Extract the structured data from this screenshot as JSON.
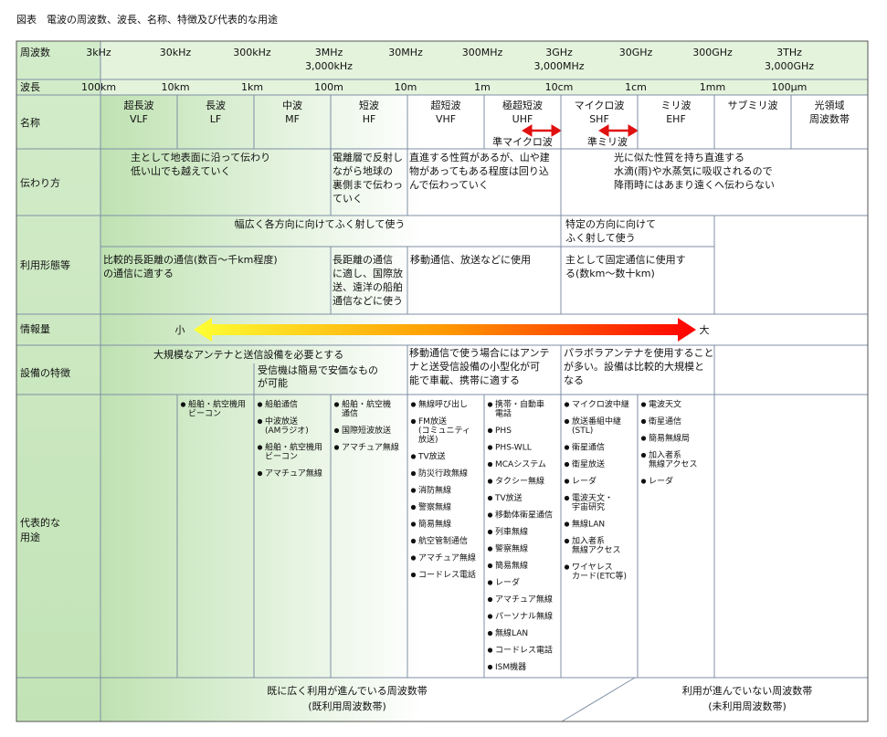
{
  "title": "図表　電波の周波数、波長、名称、特徴及び代表的な用途",
  "row_labels": {
    "frequency": "周波数",
    "wavelength": "波長",
    "name": "名称",
    "propagation": "伝わり方",
    "usage": "利用形態等",
    "information": "情報量",
    "equipment": "設備の特徴",
    "applications": [
      "代表的な",
      "用途"
    ]
  },
  "frequencies": [
    {
      "label": "3kHz"
    },
    {
      "label": "30kHz"
    },
    {
      "label": "300kHz"
    },
    {
      "label": "3MHz",
      "alt": "3,000kHz"
    },
    {
      "label": "30MHz"
    },
    {
      "label": "300MHz"
    },
    {
      "label": "3GHz",
      "alt": "3,000MHz"
    },
    {
      "label": "30GHz"
    },
    {
      "label": "300GHz"
    },
    {
      "label": "3THz",
      "alt": "3,000GHz"
    }
  ],
  "wavelengths": [
    "100km",
    "10km",
    "1km",
    "100m",
    "10m",
    "1m",
    "10cm",
    "1cm",
    "1mm",
    "100μm"
  ],
  "bands": [
    [
      "超長波",
      "VLF"
    ],
    [
      "長波",
      "LF"
    ],
    [
      "中波",
      "MF"
    ],
    [
      "短波",
      "HF"
    ],
    [
      "超短波",
      "VHF"
    ],
    [
      "極超短波",
      "UHF"
    ],
    [
      "マイクロ波",
      "SHF"
    ],
    [
      "ミリ波",
      "EHF"
    ],
    [
      "サブミリ波"
    ],
    [
      "光領域",
      "周波数帯"
    ]
  ],
  "sub_bands": [
    "準マイクロ波",
    "準ミリ波"
  ],
  "propagation": [
    [
      "主として地表面に沿って伝わり",
      "低い山でも越えていく"
    ],
    [
      "電離層で反射し",
      "ながら地球の",
      "裏側まで伝わっ",
      "ていく"
    ],
    [
      "直進する性質があるが、山や建",
      "物があってもある程度は回り込",
      "んで伝わっていく"
    ],
    [
      "光に似た性質を持ち直進する",
      "水滴(雨)や水蒸気に吸収されるので",
      "降雨時にはあまり遠くへ伝わらない"
    ]
  ],
  "usage": {
    "radiation": [
      [
        "幅広く各方向に向けてふく射して使う"
      ],
      [
        "特定の方向に向けて",
        "ふく射して使う"
      ]
    ],
    "purpose": [
      [
        "比較的長距離の通信(数百～千km程度)",
        "の通信に適する"
      ],
      [
        "長距離の通信",
        "に適し、国際放",
        "送、遠洋の船舶",
        "通信などに使う"
      ],
      [
        "移動通信、放送などに使用"
      ],
      [
        "主として固定通信に使用す",
        "る(数km～数十km)"
      ]
    ]
  },
  "information": {
    "low": "小",
    "high": "大"
  },
  "equipment": [
    [
      "大規模なアンテナと送信設備を必要とする"
    ],
    [
      "受信機は簡易で安価なもの",
      "が可能"
    ],
    [
      "移動通信で使う場合にはアンテ",
      "ナと送受信設備の小型化が可",
      "能で車載、携帯に適する"
    ],
    [
      "パラボラアンテナを使用すること",
      "が多い。設備は比較的大規模と",
      "なる"
    ]
  ],
  "applications": [
    [],
    [
      [
        "船舶・航空機用",
        "ビーコン"
      ]
    ],
    [
      [
        "船舶通信"
      ],
      [
        "中波放送",
        "(AMラジオ)"
      ],
      [
        "船舶・航空機用",
        "ビーコン"
      ],
      [
        "アマチュア無線"
      ]
    ],
    [
      [
        "船舶・航空機",
        "通信"
      ],
      [
        "国際短波放送"
      ],
      [
        "アマチュア無線"
      ]
    ],
    [
      [
        "無線呼び出し"
      ],
      [
        "FM放送",
        "(コミュニティ",
        "放送)"
      ],
      [
        "TV放送"
      ],
      [
        "防災行政無線"
      ],
      [
        "消防無線"
      ],
      [
        "警察無線"
      ],
      [
        "簡易無線"
      ],
      [
        "航空管制通信"
      ],
      [
        "アマチュア無線"
      ],
      [
        "コードレス電話"
      ]
    ],
    [
      [
        "携帯・自動車",
        "電話"
      ],
      [
        "PHS"
      ],
      [
        "PHS-WLL"
      ],
      [
        "MCAシステム"
      ],
      [
        "タクシー無線"
      ],
      [
        "TV放送"
      ],
      [
        "移動体衛星通信"
      ],
      [
        "列車無線"
      ],
      [
        "警察無線"
      ],
      [
        "簡易無線"
      ],
      [
        "レーダ"
      ],
      [
        "アマチュア無線"
      ],
      [
        "パーソナル無線"
      ],
      [
        "無線LAN"
      ],
      [
        "コードレス電話"
      ],
      [
        "ISM機器"
      ]
    ],
    [
      [
        "マイクロ波中継"
      ],
      [
        "放送番組中継",
        "(STL)"
      ],
      [
        "衛星通信"
      ],
      [
        "衛星放送"
      ],
      [
        "レーダ"
      ],
      [
        "電波天文・",
        "宇宙研究"
      ],
      [
        "無線LAN"
      ],
      [
        "加入者系",
        "無線アクセス"
      ],
      [
        "ワイヤレス",
        "カード(ETC等)"
      ]
    ],
    [
      [
        "電波天文"
      ],
      [
        "衛星通信"
      ],
      [
        "簡易無線局"
      ],
      [
        "加入者系",
        "無線アクセス"
      ],
      [
        "レーダ"
      ]
    ]
  ],
  "status": [
    [
      "既に広く利用が進んでいる周波数帯",
      "(既利用周波数帯)"
    ],
    [
      "利用が進んでいない周波数帯",
      "(未利用周波数帯)"
    ]
  ]
}
